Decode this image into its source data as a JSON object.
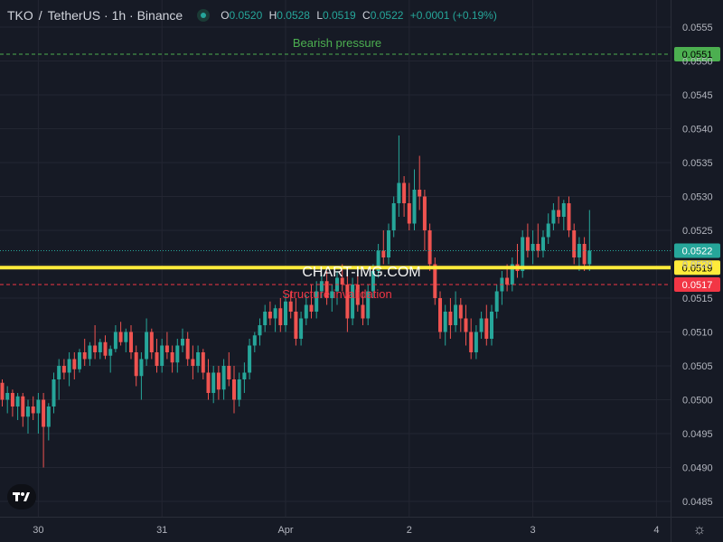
{
  "header": {
    "symbol": "TKO",
    "sep": "/",
    "quote": "TetherUS",
    "interval": "· 1h · Binance",
    "o_label": "O",
    "o": "0.0520",
    "h_label": "H",
    "h": "0.0528",
    "l_label": "L",
    "l": "0.0519",
    "c_label": "C",
    "c": "0.0522",
    "change": "+0.0001 (+0.19%)"
  },
  "watermark": "CHART-IMG.COM",
  "colors": {
    "background": "#161a25",
    "grid": "#232632",
    "up": "#26a69a",
    "down": "#ef5350",
    "bearish": "#4caf50",
    "invalidation": "#f23645",
    "yellow": "#ffeb3b"
  },
  "chart_data": {
    "type": "candlestick",
    "symbol": "TKO/TetherUS",
    "interval": "1h",
    "exchange": "Binance",
    "ylim": [
      0.0482,
      0.0558
    ],
    "y_ticks": [
      "0.0555",
      "0.0550",
      "0.0545",
      "0.0540",
      "0.0535",
      "0.0530",
      "0.0525",
      "0.0520",
      "0.0515",
      "0.0510",
      "0.0505",
      "0.0500",
      "0.0495",
      "0.0490",
      "0.0485"
    ],
    "x_ticks": [
      {
        "label": "30",
        "index": 7
      },
      {
        "label": "31",
        "index": 31
      },
      {
        "label": "Apr",
        "index": 55
      },
      {
        "label": "2",
        "index": 79
      },
      {
        "label": "3",
        "index": 103
      },
      {
        "label": "4",
        "index": 127
      }
    ],
    "levels": [
      {
        "name": "Bearish pressure",
        "price": 0.0551,
        "badge": "0.0551",
        "color": "#4caf50"
      },
      {
        "name": "Structure invalidation",
        "price": 0.0517,
        "badge": "0.0517",
        "color": "#f23645"
      },
      {
        "name": "",
        "price": 0.05195,
        "badge": "0.0519",
        "color": "#ffeb3b"
      },
      {
        "name": "",
        "price": 0.0522,
        "badge": "0.0522",
        "color": "#26a69a"
      }
    ],
    "candles": [
      [
        0.05025,
        0.0503,
        0.0499,
        0.05
      ],
      [
        0.05,
        0.0502,
        0.0498,
        0.0501
      ],
      [
        0.0501,
        0.05015,
        0.04975,
        0.0499
      ],
      [
        0.0499,
        0.0501,
        0.0497,
        0.05005
      ],
      [
        0.05005,
        0.0501,
        0.0496,
        0.04975
      ],
      [
        0.04975,
        0.05,
        0.0495,
        0.0499
      ],
      [
        0.0499,
        0.05005,
        0.0497,
        0.0498
      ],
      [
        0.0498,
        0.0501,
        0.0495,
        0.05
      ],
      [
        0.05,
        0.0501,
        0.049,
        0.0496
      ],
      [
        0.0496,
        0.04995,
        0.0494,
        0.0499
      ],
      [
        0.0499,
        0.0504,
        0.0498,
        0.0503
      ],
      [
        0.0503,
        0.0506,
        0.05,
        0.0505
      ],
      [
        0.0505,
        0.0506,
        0.0503,
        0.0504
      ],
      [
        0.0504,
        0.0507,
        0.0502,
        0.0506
      ],
      [
        0.0506,
        0.0507,
        0.0503,
        0.05045
      ],
      [
        0.05045,
        0.05075,
        0.0504,
        0.0507
      ],
      [
        0.0507,
        0.0509,
        0.0505,
        0.0506
      ],
      [
        0.0506,
        0.05085,
        0.0505,
        0.0508
      ],
      [
        0.0508,
        0.0511,
        0.0506,
        0.0507
      ],
      [
        0.0507,
        0.0509,
        0.0506,
        0.05085
      ],
      [
        0.05085,
        0.05095,
        0.0506,
        0.05065
      ],
      [
        0.05065,
        0.0508,
        0.0504,
        0.05075
      ],
      [
        0.05075,
        0.0511,
        0.0507,
        0.051
      ],
      [
        0.051,
        0.05115,
        0.0508,
        0.05085
      ],
      [
        0.05085,
        0.05105,
        0.0507,
        0.051
      ],
      [
        0.051,
        0.0511,
        0.0506,
        0.0507
      ],
      [
        0.0507,
        0.0508,
        0.0502,
        0.05035
      ],
      [
        0.05035,
        0.0507,
        0.05,
        0.0506
      ],
      [
        0.0506,
        0.0512,
        0.0505,
        0.051
      ],
      [
        0.051,
        0.05105,
        0.0506,
        0.0507
      ],
      [
        0.0507,
        0.0509,
        0.0504,
        0.0505
      ],
      [
        0.0505,
        0.0509,
        0.0504,
        0.0508
      ],
      [
        0.0508,
        0.051,
        0.0506,
        0.0507
      ],
      [
        0.0507,
        0.0508,
        0.0504,
        0.05055
      ],
      [
        0.05055,
        0.0509,
        0.0504,
        0.0508
      ],
      [
        0.0508,
        0.05105,
        0.0507,
        0.0509
      ],
      [
        0.0509,
        0.051,
        0.0505,
        0.0506
      ],
      [
        0.0506,
        0.0508,
        0.0503,
        0.0505
      ],
      [
        0.0505,
        0.0508,
        0.0504,
        0.0507
      ],
      [
        0.0507,
        0.05075,
        0.0503,
        0.0504
      ],
      [
        0.0504,
        0.0506,
        0.05,
        0.0501
      ],
      [
        0.0501,
        0.0505,
        0.04995,
        0.0504
      ],
      [
        0.0504,
        0.0505,
        0.05,
        0.05015
      ],
      [
        0.05015,
        0.0506,
        0.05,
        0.0505
      ],
      [
        0.0505,
        0.0507,
        0.0502,
        0.0503
      ],
      [
        0.0503,
        0.0505,
        0.0498,
        0.05
      ],
      [
        0.05,
        0.0504,
        0.0499,
        0.0503
      ],
      [
        0.0503,
        0.05055,
        0.0501,
        0.0504
      ],
      [
        0.0504,
        0.0509,
        0.0503,
        0.0508
      ],
      [
        0.0508,
        0.051,
        0.0507,
        0.05095
      ],
      [
        0.05095,
        0.0512,
        0.0508,
        0.0511
      ],
      [
        0.0511,
        0.0514,
        0.051,
        0.0513
      ],
      [
        0.0513,
        0.05145,
        0.0511,
        0.0512
      ],
      [
        0.0512,
        0.0514,
        0.051,
        0.05135
      ],
      [
        0.05135,
        0.0515,
        0.051,
        0.0511
      ],
      [
        0.0511,
        0.05155,
        0.051,
        0.05145
      ],
      [
        0.05145,
        0.0516,
        0.0512,
        0.0513
      ],
      [
        0.0513,
        0.0515,
        0.0508,
        0.0509
      ],
      [
        0.0509,
        0.0513,
        0.0508,
        0.0512
      ],
      [
        0.0512,
        0.05155,
        0.0511,
        0.0514
      ],
      [
        0.0514,
        0.0517,
        0.0512,
        0.0513
      ],
      [
        0.0513,
        0.05175,
        0.0512,
        0.0516
      ],
      [
        0.0516,
        0.05185,
        0.0515,
        0.05175
      ],
      [
        0.05175,
        0.0519,
        0.0514,
        0.0515
      ],
      [
        0.0515,
        0.0517,
        0.0513,
        0.0516
      ],
      [
        0.0516,
        0.0519,
        0.0514,
        0.0518
      ],
      [
        0.0518,
        0.052,
        0.0516,
        0.0517
      ],
      [
        0.0517,
        0.0519,
        0.051,
        0.0512
      ],
      [
        0.0512,
        0.0518,
        0.0511,
        0.0517
      ],
      [
        0.0517,
        0.05185,
        0.0513,
        0.0514
      ],
      [
        0.0514,
        0.0516,
        0.0511,
        0.0512
      ],
      [
        0.0512,
        0.0517,
        0.0511,
        0.0516
      ],
      [
        0.0516,
        0.052,
        0.0515,
        0.0519
      ],
      [
        0.0519,
        0.0523,
        0.0518,
        0.0522
      ],
      [
        0.0522,
        0.0525,
        0.052,
        0.0521
      ],
      [
        0.0521,
        0.0526,
        0.052,
        0.0525
      ],
      [
        0.0525,
        0.053,
        0.0524,
        0.0529
      ],
      [
        0.0529,
        0.0539,
        0.0527,
        0.0532
      ],
      [
        0.0532,
        0.0533,
        0.0527,
        0.0529
      ],
      [
        0.0529,
        0.0532,
        0.0525,
        0.0526
      ],
      [
        0.0526,
        0.0534,
        0.0525,
        0.0531
      ],
      [
        0.0531,
        0.0536,
        0.0528,
        0.053
      ],
      [
        0.053,
        0.0531,
        0.0522,
        0.0525
      ],
      [
        0.0525,
        0.0526,
        0.0519,
        0.052
      ],
      [
        0.052,
        0.0521,
        0.0514,
        0.0515
      ],
      [
        0.0515,
        0.0516,
        0.0509,
        0.051
      ],
      [
        0.051,
        0.0514,
        0.0508,
        0.0513
      ],
      [
        0.0513,
        0.0515,
        0.0509,
        0.0511
      ],
      [
        0.0511,
        0.0516,
        0.051,
        0.0514
      ],
      [
        0.0514,
        0.0515,
        0.051,
        0.0512
      ],
      [
        0.0512,
        0.0514,
        0.0508,
        0.051
      ],
      [
        0.051,
        0.0512,
        0.0506,
        0.0507
      ],
      [
        0.0507,
        0.0511,
        0.0506,
        0.051
      ],
      [
        0.051,
        0.0513,
        0.0509,
        0.0512
      ],
      [
        0.0512,
        0.0514,
        0.0508,
        0.0509
      ],
      [
        0.0509,
        0.0514,
        0.0508,
        0.0513
      ],
      [
        0.0513,
        0.0517,
        0.0512,
        0.0516
      ],
      [
        0.0516,
        0.0519,
        0.0514,
        0.0518
      ],
      [
        0.0518,
        0.052,
        0.0516,
        0.0517
      ],
      [
        0.0517,
        0.0521,
        0.0516,
        0.052
      ],
      [
        0.052,
        0.0523,
        0.0518,
        0.0519
      ],
      [
        0.0519,
        0.0525,
        0.0518,
        0.0524
      ],
      [
        0.0524,
        0.0526,
        0.0521,
        0.0522
      ],
      [
        0.0522,
        0.0525,
        0.052,
        0.0523
      ],
      [
        0.0523,
        0.0526,
        0.0521,
        0.0522
      ],
      [
        0.0522,
        0.0525,
        0.0521,
        0.0524
      ],
      [
        0.0524,
        0.05275,
        0.0523,
        0.0526
      ],
      [
        0.0526,
        0.0529,
        0.0525,
        0.0528
      ],
      [
        0.0528,
        0.053,
        0.0526,
        0.0527
      ],
      [
        0.0527,
        0.05295,
        0.0525,
        0.0529
      ],
      [
        0.0529,
        0.053,
        0.0524,
        0.0525
      ],
      [
        0.0525,
        0.0526,
        0.052,
        0.0521
      ],
      [
        0.0521,
        0.0524,
        0.0519,
        0.0523
      ],
      [
        0.0523,
        0.0524,
        0.0519,
        0.052
      ],
      [
        0.052,
        0.0528,
        0.0519,
        0.0522
      ]
    ]
  }
}
